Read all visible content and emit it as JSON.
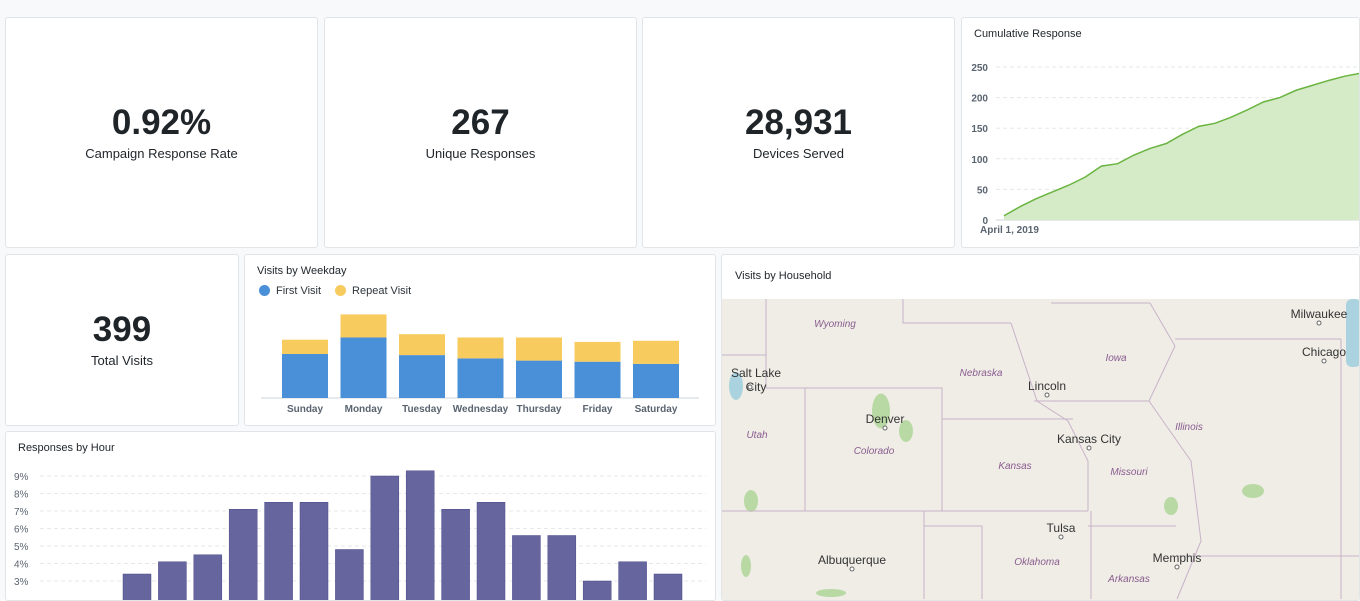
{
  "kpis": [
    {
      "value": "0.92%",
      "label": "Campaign Response Rate"
    },
    {
      "value": "267",
      "label": "Unique Responses"
    },
    {
      "value": "28,931",
      "label": "Devices Served"
    },
    {
      "value": "399",
      "label": "Total Visits"
    }
  ],
  "chart_data": [
    {
      "type": "area",
      "title": "Cumulative Response",
      "color": "#6ab440",
      "x_first_label": "April 1, 2019",
      "y_ticks": [
        "0",
        "50",
        "100",
        "150",
        "200",
        "250"
      ],
      "ylim": [
        0,
        250
      ],
      "grid": true,
      "values": [
        7,
        22,
        35,
        46,
        57,
        70,
        88,
        92,
        106,
        117,
        125,
        140,
        153,
        158,
        168,
        180,
        193,
        200,
        212,
        220,
        228,
        235,
        240
      ]
    },
    {
      "type": "bar",
      "stacked": true,
      "title": "Visits by Weekday",
      "legend_position": "top-left",
      "categories": [
        "Sunday",
        "Monday",
        "Tuesday",
        "Wednesday",
        "Thursday",
        "Friday",
        "Saturday"
      ],
      "series": [
        {
          "name": "First Visit",
          "color": "#4a90d9",
          "values": [
            40,
            55,
            39,
            36,
            34,
            33,
            31
          ]
        },
        {
          "name": "Repeat Visit",
          "color": "#f7cb5e",
          "values": [
            13,
            21,
            19,
            19,
            21,
            18,
            21
          ]
        }
      ]
    },
    {
      "type": "bar",
      "title": "Responses by Hour",
      "color": "#67659e",
      "y_ticks": [
        "3%",
        "4%",
        "5%",
        "6%",
        "7%",
        "8%",
        "9%"
      ],
      "grid": true,
      "values": [
        3.4,
        4.1,
        4.5,
        7.1,
        7.5,
        7.5,
        4.8,
        9.0,
        9.3,
        7.1,
        7.5,
        5.6,
        5.6,
        3.0,
        4.1,
        3.4
      ]
    }
  ],
  "map": {
    "title": "Visits by Household",
    "cities": [
      "Salt Lake City",
      "Denver",
      "Lincoln",
      "Kansas City",
      "Tulsa",
      "Albuquerque",
      "Memphis",
      "Milwaukee",
      "Chicago"
    ],
    "states": [
      "Wyoming",
      "Utah",
      "Colorado",
      "Nebraska",
      "Iowa",
      "Kansas",
      "Missouri",
      "Illinois",
      "Oklahoma",
      "Arkansas"
    ]
  }
}
